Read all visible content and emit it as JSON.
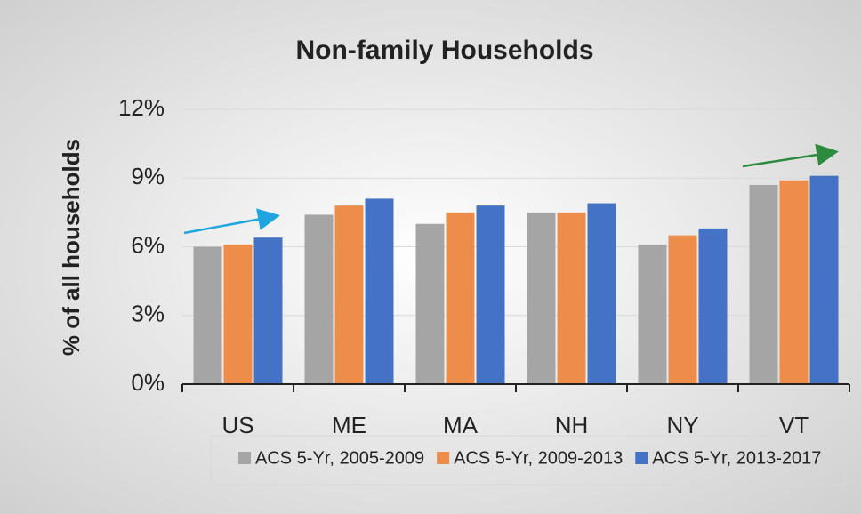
{
  "chart_data": {
    "type": "bar",
    "title": "Non-family Households",
    "y_label": "% of all households",
    "categories": [
      "US",
      "ME",
      "MA",
      "NH",
      "NY",
      "VT"
    ],
    "series": [
      {
        "name": "ACS 5-Yr, 2005-2009",
        "color": "#a5a5a5",
        "values": [
          6.0,
          7.4,
          7.0,
          7.5,
          6.1,
          8.7
        ]
      },
      {
        "name": "ACS 5-Yr, 2009-2013",
        "color": "#ee8c49",
        "values": [
          6.1,
          7.8,
          7.5,
          7.5,
          6.5,
          8.9
        ]
      },
      {
        "name": "ACS 5-Yr, 2013-2017",
        "color": "#4472c4",
        "values": [
          6.4,
          8.1,
          7.8,
          7.9,
          6.8,
          9.1
        ]
      }
    ],
    "ylim": [
      0,
      12
    ],
    "yticks": [
      {
        "value": 0,
        "label": "0%"
      },
      {
        "value": 3,
        "label": "3%"
      },
      {
        "value": 6,
        "label": "6%"
      },
      {
        "value": 9,
        "label": "9%"
      },
      {
        "value": 12,
        "label": "12%"
      }
    ],
    "grid": true,
    "legend": "bottom"
  }
}
